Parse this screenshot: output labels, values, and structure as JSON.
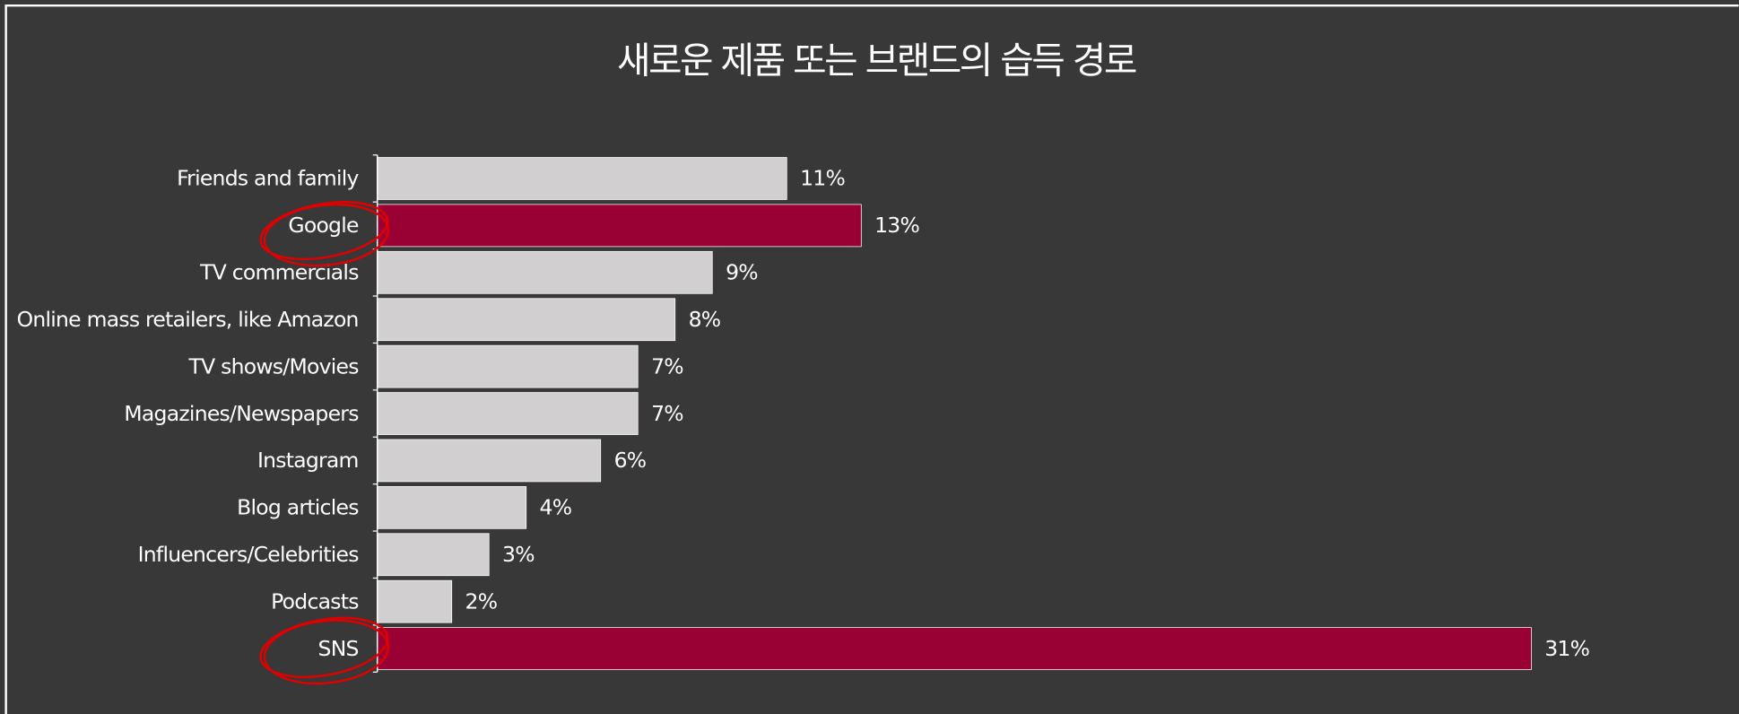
{
  "chart_data": {
    "type": "bar",
    "orientation": "horizontal",
    "title": "새로운 제품 또는 브랜드의 습득 경로",
    "categories": [
      "Friends and family",
      "Google",
      "TV commercials",
      "Online mass retailers, like Amazon",
      "TV shows/Movies",
      "Magazines/Newspapers",
      "Instagram",
      "Blog articles",
      "Influencers/Celebrities",
      "Podcasts",
      "SNS"
    ],
    "values": [
      11,
      13,
      9,
      8,
      7,
      7,
      6,
      4,
      3,
      2,
      31
    ],
    "value_labels": [
      "11%",
      "13%",
      "9%",
      "8%",
      "7%",
      "7%",
      "6%",
      "4%",
      "3%",
      "2%",
      "31%"
    ],
    "colors": [
      "#d1cfd0",
      "#990033",
      "#d1cfd0",
      "#d1cfd0",
      "#d1cfd0",
      "#d1cfd0",
      "#d1cfd0",
      "#d1cfd0",
      "#d1cfd0",
      "#d1cfd0",
      "#990033"
    ],
    "xlim": [
      0,
      31
    ]
  }
}
